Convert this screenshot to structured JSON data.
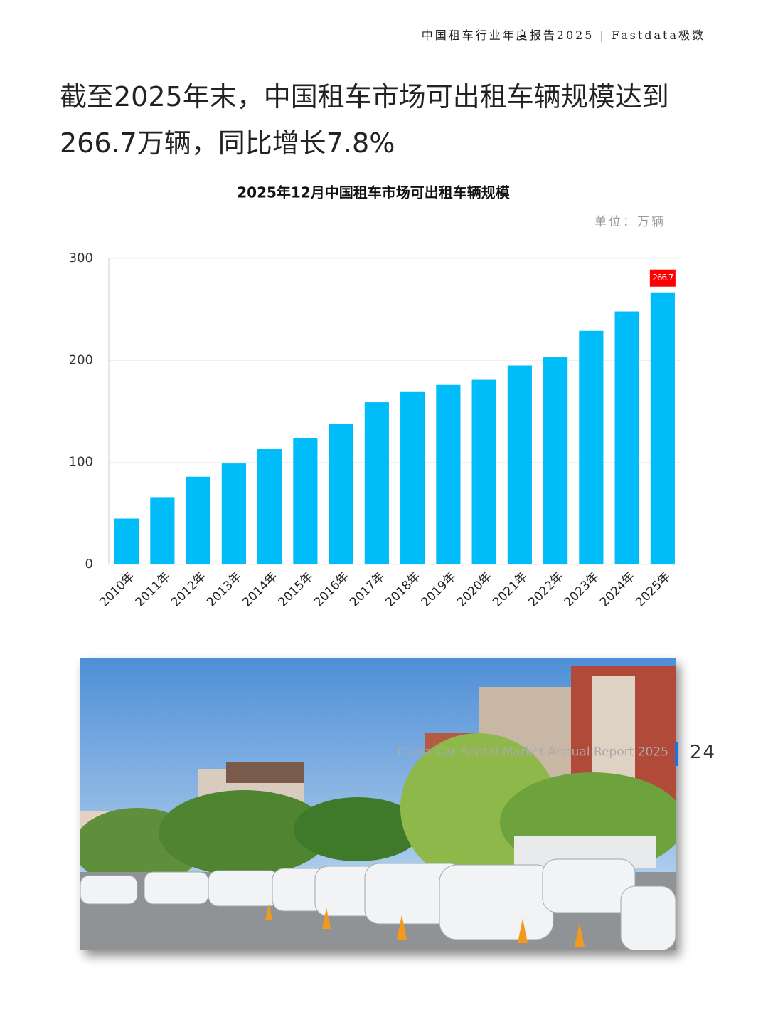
{
  "header": {
    "title": "中国租车行业年度报告2025 | Fastdata极数"
  },
  "headline": [
    "截至2025年末，中国租车市场可出租车辆规模达到",
    "266.7万辆，同比增长7.8%"
  ],
  "chart_data": {
    "type": "bar",
    "title": "2025年12月中国租车市场可出租车辆规模",
    "unit_label": "单位：万辆",
    "categories": [
      "2010年",
      "2011年",
      "2012年",
      "2013年",
      "2014年",
      "2015年",
      "2016年",
      "2017年",
      "2018年",
      "2019年",
      "2020年",
      "2021年",
      "2022年",
      "2023年",
      "2024年",
      "2025年"
    ],
    "values": [
      45,
      66,
      86,
      99,
      113,
      124,
      138,
      159,
      169,
      176,
      181,
      195,
      203,
      229,
      248,
      266.7
    ],
    "value_labels": [
      null,
      null,
      null,
      null,
      null,
      null,
      null,
      null,
      null,
      null,
      null,
      null,
      null,
      null,
      null,
      "266.7"
    ],
    "color": "#00bcf9",
    "label_color": "#ff0000",
    "ylim": [
      0,
      300
    ],
    "yticks": [
      0,
      100,
      200,
      300
    ],
    "grid": true
  },
  "footer": {
    "report_name": "China Car Rental Market Annual Report 2025",
    "page_number": "24"
  }
}
